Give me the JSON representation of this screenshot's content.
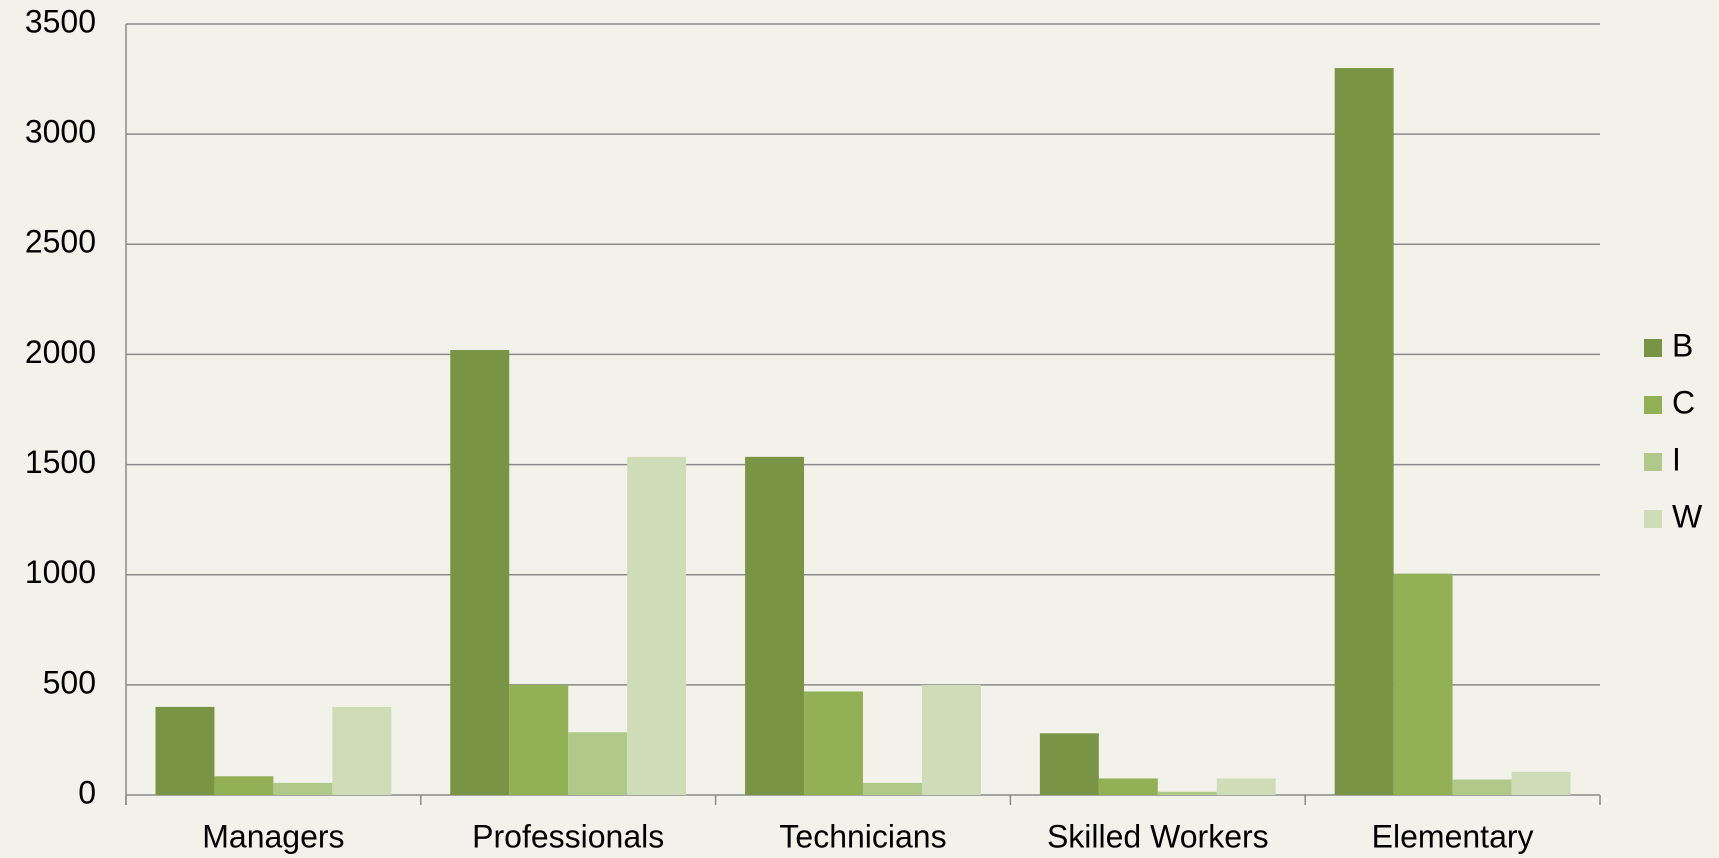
{
  "chart_data": {
    "type": "bar",
    "categories": [
      "Managers",
      "Professionals",
      "Technicians",
      "Skilled Workers",
      "Elementary"
    ],
    "series": [
      {
        "name": "B",
        "color": "#7a9445",
        "values": [
          400,
          2020,
          1535,
          280,
          3300
        ]
      },
      {
        "name": "C",
        "color": "#92b156",
        "values": [
          85,
          500,
          470,
          75,
          1005
        ]
      },
      {
        "name": "I",
        "color": "#b0c98a",
        "values": [
          55,
          285,
          55,
          15,
          70
        ]
      },
      {
        "name": "W",
        "color": "#cfdcb8",
        "values": [
          400,
          1535,
          500,
          75,
          105
        ]
      }
    ],
    "ylim": [
      0,
      3500
    ],
    "yticks": [
      0,
      500,
      1000,
      1500,
      2000,
      2500,
      3000,
      3500
    ],
    "grid": true,
    "legend": "right"
  }
}
